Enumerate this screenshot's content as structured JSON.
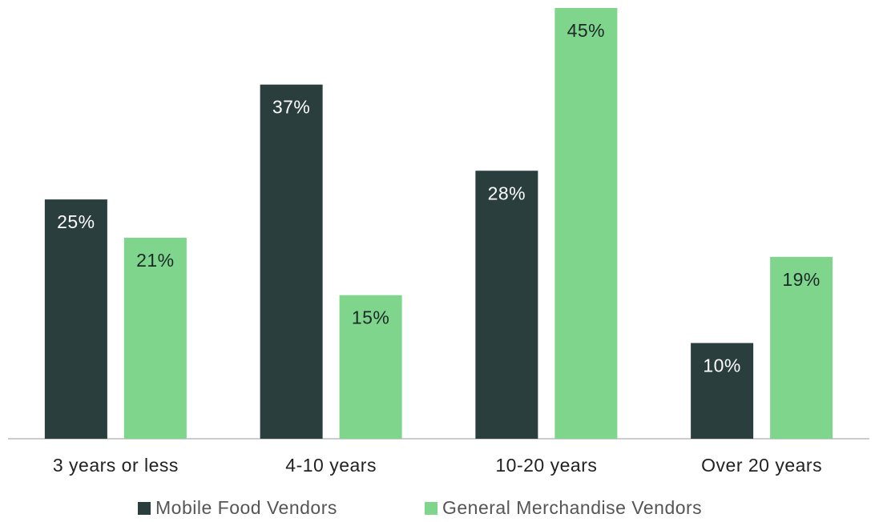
{
  "chart_data": {
    "type": "bar",
    "categories": [
      "3 years or less",
      "4-10 years",
      "10-20 years",
      "Over 20 years"
    ],
    "series": [
      {
        "name": "Mobile Food Vendors",
        "color": "#2a3f3d",
        "values": [
          25,
          37,
          28,
          10
        ],
        "value_labels": [
          "25%",
          "37%",
          "28%",
          "10%"
        ]
      },
      {
        "name": "General Merchandise Vendors",
        "color": "#7fd58b",
        "values": [
          21,
          15,
          45,
          19
        ],
        "value_labels": [
          "21%",
          "15%",
          "45%",
          "19%"
        ]
      }
    ],
    "legend": "bottom"
  }
}
